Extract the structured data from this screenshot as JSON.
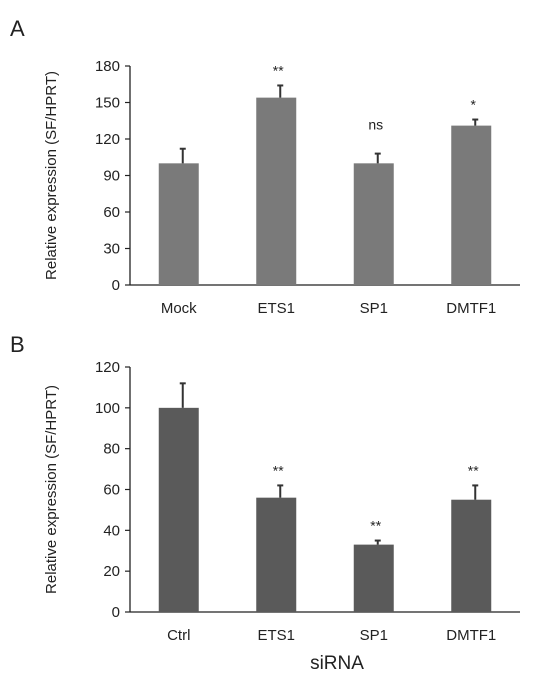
{
  "colors": {
    "panel_a_bar": "#7a7a7a",
    "panel_b_bar": "#5a5a5a",
    "axis": "#222222",
    "error_bar": "#333333"
  },
  "chart_data": [
    {
      "type": "bar",
      "panel": "A",
      "categories": [
        "Mock",
        "ETS1",
        "SP1",
        "DMTF1"
      ],
      "values": [
        100,
        154,
        100,
        131
      ],
      "errors": [
        12,
        10,
        8,
        5
      ],
      "significance": [
        "",
        "**",
        "ns",
        "*"
      ],
      "title": "",
      "xlabel": "",
      "ylabel": "Relative expression (SF/HPRT)",
      "ylim": [
        0,
        180
      ],
      "yticks": [
        0,
        30,
        60,
        90,
        120,
        150,
        180
      ],
      "grid": false,
      "legend": "none"
    },
    {
      "type": "bar",
      "panel": "B",
      "categories": [
        "Ctrl",
        "ETS1",
        "SP1",
        "DMTF1"
      ],
      "values": [
        100,
        56,
        33,
        55
      ],
      "errors": [
        12,
        6,
        2,
        7
      ],
      "significance": [
        "",
        "**",
        "**",
        "**"
      ],
      "title": "",
      "xlabel": "siRNA",
      "ylabel": "Relative expression (SF/HPRT)",
      "ylim": [
        0,
        120
      ],
      "yticks": [
        0,
        20,
        40,
        60,
        80,
        100,
        120
      ],
      "grid": false,
      "legend": "none"
    }
  ]
}
